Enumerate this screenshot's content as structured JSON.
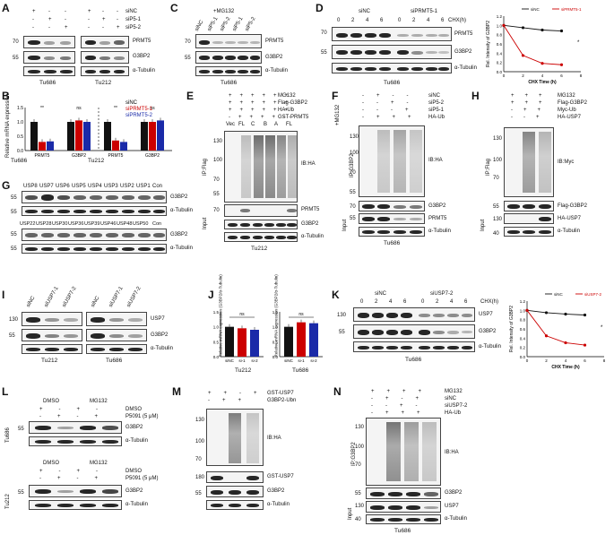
{
  "panels": {
    "A": "A",
    "B": "B",
    "C": "C",
    "D": "D",
    "E": "E",
    "F": "F",
    "G": "G",
    "H": "H",
    "I": "I",
    "J": "J",
    "K": "K",
    "L": "L",
    "M": "M",
    "N": "N"
  },
  "A": {
    "rows": [
      "siNC",
      "siP5-1",
      "siP5-2"
    ],
    "signs_left": [
      [
        "+",
        "-",
        "-"
      ],
      [
        "-",
        "+",
        "-"
      ],
      [
        "-",
        "-",
        "+"
      ]
    ],
    "signs_right": [
      [
        "+",
        "-",
        "-"
      ],
      [
        "-",
        "+",
        "-"
      ],
      [
        "-",
        "-",
        "+"
      ]
    ],
    "bands": [
      "PRMT5",
      "G3BP2",
      "α-Tubulin"
    ],
    "mw": [
      "70",
      "55",
      "55"
    ],
    "cells": [
      "Tu686",
      "Tu212"
    ]
  },
  "B": {
    "ylabel": "Relative mRNA expression",
    "legend": [
      "siNC",
      "siPRMT5-1",
      "siPRMT5-2"
    ],
    "groups": [
      "PRMT5",
      "G3BP2",
      "PRMT5",
      "G3BP2"
    ],
    "cells": [
      "Tu686",
      "Tu212"
    ],
    "sig": [
      "**",
      "ns",
      "**",
      "ns"
    ],
    "yticks": [
      "0.0",
      "0.5",
      "1.0",
      "1.5"
    ]
  },
  "C": {
    "treat": "+MG132",
    "lanes": [
      "siNC",
      "siP5-1",
      "siP5-2",
      "siP5-1",
      "siP5-2"
    ],
    "bands": [
      "PRMT5",
      "G3BP2",
      "α-Tubulin"
    ],
    "mw": [
      "70",
      "55",
      "55"
    ],
    "cell": "Tu686"
  },
  "D": {
    "groups": [
      "siNC",
      "siPRMT5-1"
    ],
    "chx": "CHX(h)",
    "times": [
      "0",
      "2",
      "4",
      "6",
      "0",
      "2",
      "4",
      "6"
    ],
    "bands": [
      "PRMT5",
      "G3BP2",
      "α-Tubulin"
    ],
    "mw": [
      "70",
      "55",
      "55"
    ],
    "cell": "Tu686",
    "plot": {
      "ylabel": "Rel. Intensity of G3BP2",
      "xlabel": "CHX Time (h)",
      "legend": [
        "siNC",
        "siPRMT5-1"
      ],
      "sig": "*"
    }
  },
  "E": {
    "rows": [
      "MG132",
      "Flag-G3BP2",
      "HA-Ub",
      "GST-PRMT5"
    ],
    "lanes": [
      "Vec",
      "FL",
      "C",
      "B",
      "A",
      "FL"
    ],
    "ip": "IP:Flag",
    "ib": "IB:HA",
    "input": "Input",
    "bands": [
      "PRMT5",
      "G3BP2",
      "α-Tubulin"
    ],
    "mw": [
      "130",
      "100",
      "70",
      "55",
      "55",
      "40",
      "70"
    ],
    "cell": "Tu212"
  },
  "F": {
    "treat": "+MG132",
    "rows": [
      "siNC",
      "siP5-2",
      "siP5-1",
      "HA-Ub"
    ],
    "ip": "IP:G3BP2",
    "ib": "IB:HA",
    "input": "Input",
    "bands": [
      "G3BP2",
      "PRMT5",
      "α-Tubulin"
    ],
    "mw": [
      "130",
      "100",
      "70",
      "55",
      "70",
      "55"
    ],
    "cell": "Tu686"
  },
  "G": {
    "lanes1": [
      "USP8",
      "USP7",
      "USP6",
      "USP5",
      "USP4",
      "USP3",
      "USP2",
      "USP1",
      "Con"
    ],
    "lanes2": [
      "USP22",
      "USP28",
      "USP30",
      "USP36",
      "USP39",
      "USP46",
      "USP48",
      "USP50",
      "Con"
    ],
    "bands": [
      "G3BP2",
      "α-Tubulin",
      "G3BP2",
      "α-Tubulin"
    ],
    "mw": [
      "55",
      "55",
      "55",
      "55"
    ]
  },
  "H": {
    "rows": [
      "MG132",
      "Flag-G3BP2",
      "Myc-Ub",
      "HA-USP7"
    ],
    "ip": "IP:Flag",
    "ib": "IB:Myc",
    "input": "Input",
    "bands": [
      "Flag-G3BP2",
      "HA-USP7",
      "α-Tubulin"
    ],
    "mw": [
      "130",
      "100",
      "70",
      "55",
      "130",
      "40"
    ]
  },
  "I": {
    "lanes": [
      "siNC",
      "siUSP7-1",
      "siUSP7-2",
      "siNC",
      "siUSP7-1",
      "siUSP7-2"
    ],
    "bands": [
      "USP7",
      "G3BP2",
      "α-Tubulin"
    ],
    "mw": [
      "130",
      "55",
      "55"
    ],
    "cells": [
      "Tu212",
      "Tu686"
    ]
  },
  "J": {
    "ylabel1": "Relative mRNA expression (G3BP2/α-Tubulin)",
    "ylabel2": "Relative mRNA expression (G3BP2/α-Tubulin)",
    "x": [
      "siNC",
      "si-1",
      "si-2"
    ],
    "sig": "ns",
    "cells": [
      "Tu212",
      "Tu686"
    ]
  },
  "K": {
    "groups": [
      "siNC",
      "siUSP7-2"
    ],
    "chx": "CHX(h)",
    "times": [
      "0",
      "2",
      "4",
      "6",
      "0",
      "2",
      "4",
      "6"
    ],
    "bands": [
      "USP7",
      "G3BP2",
      "α-Tubulin"
    ],
    "mw": [
      "130",
      "55",
      "55"
    ],
    "cell": "Tu686",
    "plot": {
      "ylabel": "Rel. Intensity of G3BP2",
      "xlabel": "CHX Time (h)",
      "legend": [
        "siNC",
        "siUSP7-2"
      ],
      "sig": "*"
    }
  },
  "L": {
    "top": {
      "cell": "Tu686",
      "labels": [
        "DMSO",
        "MG132"
      ],
      "rows": [
        "DMSO",
        "P5091 (5 μM)"
      ]
    },
    "bottom": {
      "cell": "Tu212",
      "labels": [
        "DMSO",
        "MG132"
      ],
      "rows": [
        "DMSO",
        "P5091 (5 μM)"
      ]
    },
    "bands": [
      "G3BP2",
      "α-Tubulin"
    ],
    "mw": [
      "55",
      "55"
    ]
  },
  "M": {
    "rows": [
      "GST-USP7",
      "G3BP2-Ubn"
    ],
    "ib": "IB:HA",
    "bands": [
      "GST-USP7",
      "G3BP2",
      "α-Tubulin"
    ],
    "mw": [
      "130",
      "100",
      "70",
      "180",
      "55"
    ]
  },
  "N": {
    "rows": [
      "MG132",
      "siNC",
      "siUSP7-2",
      "HA-Ub"
    ],
    "ip": "IP:G3BP2",
    "ib": "IB:HA",
    "input": "Input",
    "bands": [
      "G3BP2",
      "USP7",
      "α-Tubulin"
    ],
    "mw": [
      "130",
      "100",
      "70",
      "55",
      "130",
      "40"
    ],
    "cell": "Tu686"
  },
  "chart_data": [
    {
      "type": "bar",
      "categories": [
        "PRMT5 (Tu686)",
        "G3BP2 (Tu686)",
        "PRMT5 (Tu212)",
        "G3BP2 (Tu212)"
      ],
      "series": [
        {
          "name": "siNC",
          "values": [
            1.0,
            1.0,
            1.0,
            1.0
          ]
        },
        {
          "name": "siPRMT5-1",
          "values": [
            0.3,
            1.05,
            0.35,
            1.0
          ]
        },
        {
          "name": "siPRMT5-2",
          "values": [
            0.32,
            1.0,
            0.3,
            1.05
          ]
        }
      ],
      "ylabel": "Relative mRNA expression",
      "ylim": [
        0,
        1.5
      ]
    },
    {
      "type": "line",
      "x": [
        0,
        2,
        4,
        6
      ],
      "series": [
        {
          "name": "siNC",
          "values": [
            1.0,
            0.95,
            0.9,
            0.88
          ]
        },
        {
          "name": "siPRMT5-1",
          "values": [
            1.0,
            0.35,
            0.18,
            0.15
          ]
        }
      ],
      "xlabel": "CHX Time (h)",
      "ylabel": "Rel. Intensity of G3BP2",
      "ylim": [
        0,
        1.2
      ],
      "xlim": [
        0,
        8
      ]
    },
    {
      "type": "bar",
      "categories": [
        "siNC",
        "si-1",
        "si-2"
      ],
      "series": [
        {
          "name": "Tu212",
          "values": [
            1.0,
            0.95,
            0.9
          ]
        }
      ],
      "ylim": [
        0,
        1.5
      ]
    },
    {
      "type": "bar",
      "categories": [
        "siNC",
        "si-1",
        "si-2"
      ],
      "series": [
        {
          "name": "Tu686",
          "values": [
            1.0,
            1.15,
            1.12
          ]
        }
      ],
      "ylim": [
        0,
        1.5
      ]
    },
    {
      "type": "line",
      "x": [
        0,
        2,
        4,
        6
      ],
      "series": [
        {
          "name": "siNC",
          "values": [
            1.0,
            0.95,
            0.92,
            0.9
          ]
        },
        {
          "name": "siUSP7-2",
          "values": [
            1.0,
            0.45,
            0.3,
            0.25
          ]
        }
      ],
      "xlabel": "CHX Time (h)",
      "ylabel": "Rel. Intensity of G3BP2",
      "ylim": [
        0,
        1.2
      ],
      "xlim": [
        0,
        8
      ]
    }
  ]
}
